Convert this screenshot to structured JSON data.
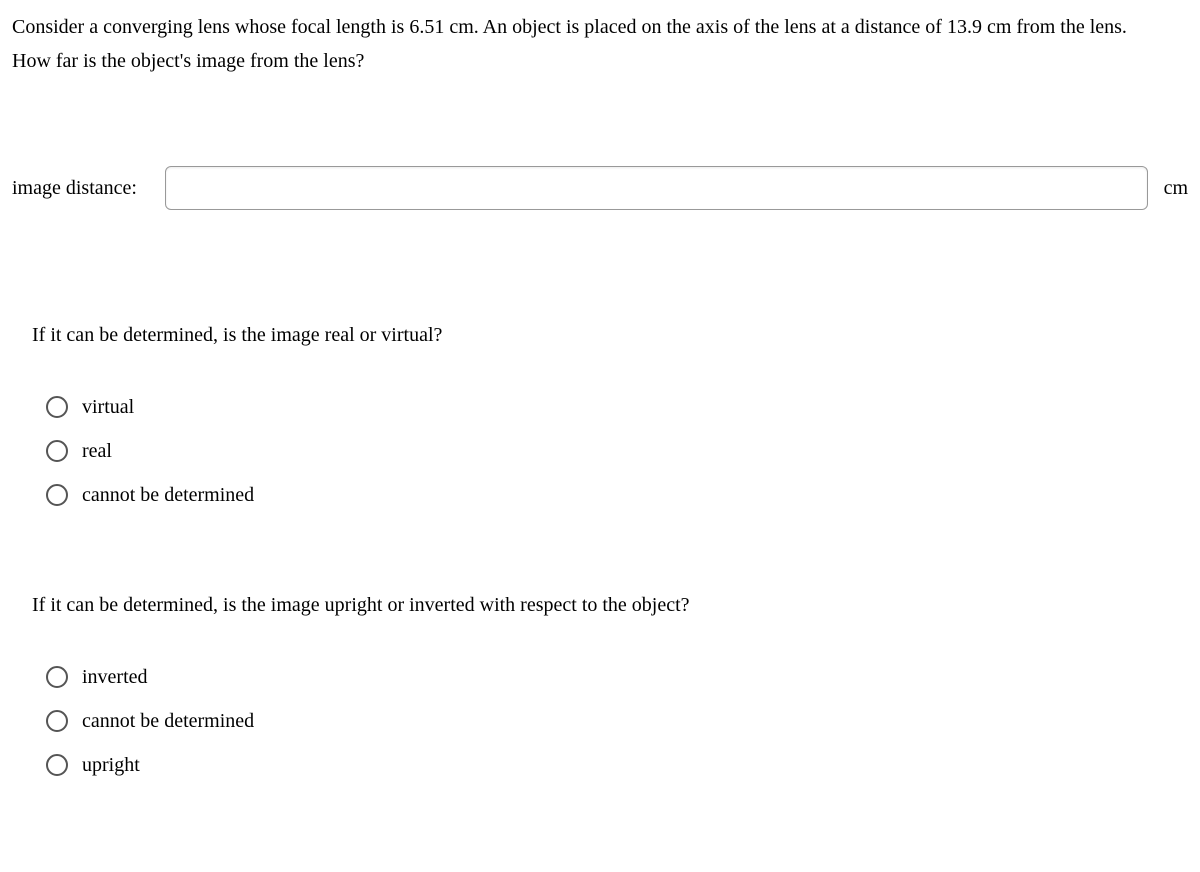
{
  "problem": {
    "line1": "Consider a converging lens whose focal length is 6.51 cm. An object is placed on the axis of the lens at a distance of 13.9 cm from the lens.",
    "line2": "How far is the object's image from the lens?"
  },
  "input": {
    "label": "image distance:",
    "value": "",
    "unit": "cm"
  },
  "question1": {
    "prompt": "If it can be determined, is the image real or virtual?",
    "options": [
      {
        "label": "virtual"
      },
      {
        "label": "real"
      },
      {
        "label": "cannot be determined"
      }
    ]
  },
  "question2": {
    "prompt": "If it can be determined, is the image upright or inverted with respect to the object?",
    "options": [
      {
        "label": "inverted"
      },
      {
        "label": "cannot be determined"
      },
      {
        "label": "upright"
      }
    ]
  }
}
